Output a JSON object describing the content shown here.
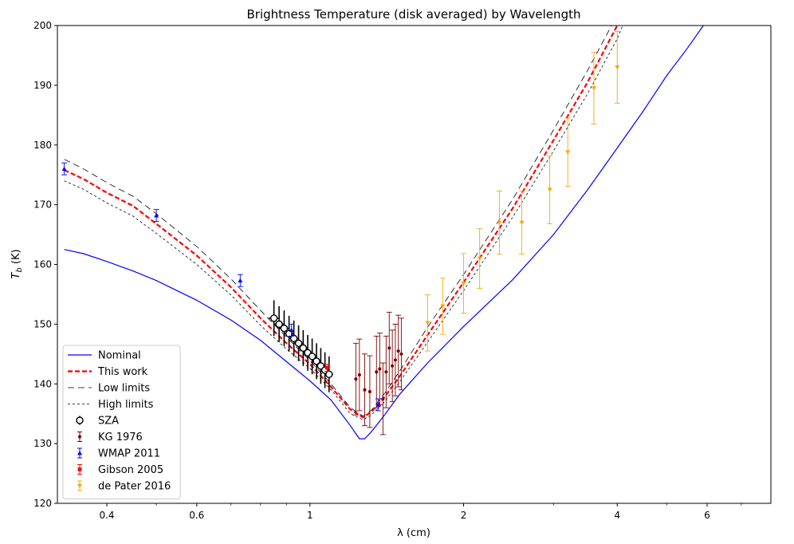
{
  "chart_data": {
    "type": "line",
    "title": "Brightness Temperature (disk averaged) by Wavelength",
    "xlabel": "λ (cm)",
    "ylabel_main": "T",
    "ylabel_sub": "b",
    "ylabel_unit": " (K)",
    "x_scale": "log",
    "xlim": [
      0.32,
      8.0
    ],
    "ylim": [
      120,
      200
    ],
    "xticks": [
      {
        "value": 0.4,
        "label": "0.4"
      },
      {
        "value": 0.6,
        "label": "0.6"
      },
      {
        "value": 1.0,
        "label": "1"
      },
      {
        "value": 2.0,
        "label": "2"
      },
      {
        "value": 4.0,
        "label": "4"
      },
      {
        "value": 6.0,
        "label": "6"
      }
    ],
    "yticks": [
      120,
      130,
      140,
      150,
      160,
      170,
      180,
      190,
      200
    ],
    "legend_position": "lower-left",
    "lines": [
      {
        "name": "Nominal",
        "color": "#0000ff",
        "style": "solid",
        "width": 1.2,
        "x": [
          0.33,
          0.36,
          0.4,
          0.45,
          0.5,
          0.6,
          0.7,
          0.8,
          0.9,
          1.0,
          1.1,
          1.2,
          1.25,
          1.28,
          1.32,
          1.4,
          1.5,
          1.7,
          2.0,
          2.5,
          3.0,
          3.5,
          4.0,
          4.5,
          5.0,
          5.5,
          5.9
        ],
        "y": [
          162.5,
          161.8,
          160.5,
          158.9,
          157.3,
          154.0,
          150.7,
          147.3,
          143.7,
          140.5,
          137.3,
          133.0,
          130.8,
          130.8,
          132.0,
          134.8,
          138.3,
          143.5,
          149.6,
          157.5,
          165.0,
          172.5,
          179.5,
          185.7,
          191.6,
          196.3,
          200.0
        ]
      },
      {
        "name": "This work",
        "color": "#ff0000",
        "style": "dashed",
        "width": 2.2,
        "x": [
          0.33,
          0.36,
          0.4,
          0.45,
          0.5,
          0.6,
          0.7,
          0.8,
          0.9,
          1.0,
          1.1,
          1.2,
          1.27,
          1.32,
          1.4,
          1.5,
          1.7,
          2.0,
          2.5,
          3.0,
          3.5,
          4.0
        ],
        "y": [
          175.8,
          174.3,
          172.0,
          169.8,
          166.8,
          161.5,
          156.2,
          151.0,
          146.8,
          143.3,
          139.5,
          135.7,
          134.4,
          135.3,
          137.8,
          141.3,
          148.2,
          157.0,
          169.5,
          180.8,
          190.5,
          200.0
        ]
      },
      {
        "name": "Low limits",
        "color": "#000000",
        "style": "longdash",
        "width": 0.8,
        "x": [
          0.33,
          0.36,
          0.4,
          0.45,
          0.5,
          0.6,
          0.7,
          0.8,
          0.9,
          1.0,
          1.1,
          1.2,
          1.27,
          1.32,
          1.4,
          1.5,
          1.7,
          2.0,
          2.5,
          3.0,
          3.5,
          3.9
        ],
        "y": [
          177.6,
          176.0,
          173.7,
          171.4,
          168.5,
          163.0,
          157.6,
          152.3,
          147.8,
          143.9,
          140.0,
          136.0,
          134.6,
          135.6,
          138.4,
          142.2,
          149.5,
          158.3,
          171.0,
          182.5,
          192.5,
          200.0
        ]
      },
      {
        "name": "High limits",
        "color": "#000000",
        "style": "shortdash",
        "width": 0.8,
        "x": [
          0.33,
          0.36,
          0.4,
          0.45,
          0.5,
          0.6,
          0.7,
          0.8,
          0.9,
          1.0,
          1.1,
          1.2,
          1.27,
          1.32,
          1.4,
          1.5,
          1.7,
          2.0,
          2.5,
          3.0,
          3.5,
          4.0,
          4.1
        ],
        "y": [
          174.0,
          172.6,
          170.3,
          168.1,
          165.2,
          160.0,
          154.9,
          149.8,
          145.8,
          142.6,
          139.0,
          135.0,
          134.0,
          134.8,
          137.0,
          140.4,
          147.0,
          155.6,
          168.0,
          179.0,
          188.6,
          197.8,
          200.0
        ]
      }
    ],
    "points": [
      {
        "name": "SZA",
        "marker": "open-circle",
        "color": "#000000",
        "x": [
          0.85,
          0.87,
          0.89,
          0.91,
          0.93,
          0.95,
          0.97,
          0.99,
          1.01,
          1.03,
          1.05,
          1.07,
          1.09
        ],
        "y": [
          151.0,
          150.0,
          149.3,
          148.4,
          147.6,
          146.8,
          146.0,
          145.2,
          144.6,
          143.8,
          143.0,
          142.3,
          141.6
        ],
        "yerr": [
          3.0,
          3.0,
          3.0,
          3.0,
          3.0,
          3.0,
          3.0,
          3.0,
          3.0,
          3.0,
          3.0,
          3.0,
          3.0
        ],
        "xerr": [
          0.02,
          0.02,
          0.02,
          0.02,
          0.02,
          0.02,
          0.02,
          0.02,
          0.02,
          0.02,
          0.02,
          0.02,
          0.02
        ]
      },
      {
        "name": "KG 1976",
        "marker": "dot",
        "color": "#800000",
        "x": [
          1.23,
          1.25,
          1.28,
          1.31,
          1.35,
          1.37,
          1.39,
          1.41,
          1.43,
          1.45,
          1.47,
          1.49,
          1.51
        ],
        "y": [
          140.8,
          141.5,
          139.0,
          138.7,
          142.0,
          142.5,
          137.5,
          142.0,
          146.0,
          143.0,
          144.0,
          145.5,
          145.0
        ],
        "yerr": [
          6.0,
          6.0,
          6.0,
          6.0,
          6.0,
          6.0,
          6.0,
          6.0,
          6.0,
          6.0,
          6.0,
          6.0,
          6.0
        ]
      },
      {
        "name": "WMAP 2011",
        "marker": "triangle-up",
        "color": "#0000ff",
        "x": [
          0.33,
          0.5,
          0.73,
          0.92,
          1.36
        ],
        "y": [
          176.0,
          168.2,
          157.3,
          149.0,
          136.5
        ],
        "yerr": [
          1.0,
          1.0,
          1.0,
          1.0,
          1.0
        ]
      },
      {
        "name": "Gibson 2005",
        "marker": "square",
        "color": "#ff0000",
        "x": [
          1.08
        ],
        "y": [
          142.7
        ],
        "yerr": [
          0.6
        ]
      },
      {
        "name": "de Pater 2016",
        "marker": "triangle-down",
        "color": "#ffa500",
        "x": [
          1.7,
          1.82,
          2.0,
          2.15,
          2.35,
          2.6,
          2.95,
          3.2,
          3.6,
          4.0
        ],
        "y": [
          150.2,
          153.0,
          156.8,
          161.0,
          167.0,
          167.0,
          172.5,
          178.8,
          189.5,
          193.0
        ],
        "yerr": [
          4.7,
          4.7,
          5.0,
          5.0,
          5.3,
          5.3,
          5.7,
          5.7,
          6.0,
          6.0
        ]
      }
    ]
  }
}
